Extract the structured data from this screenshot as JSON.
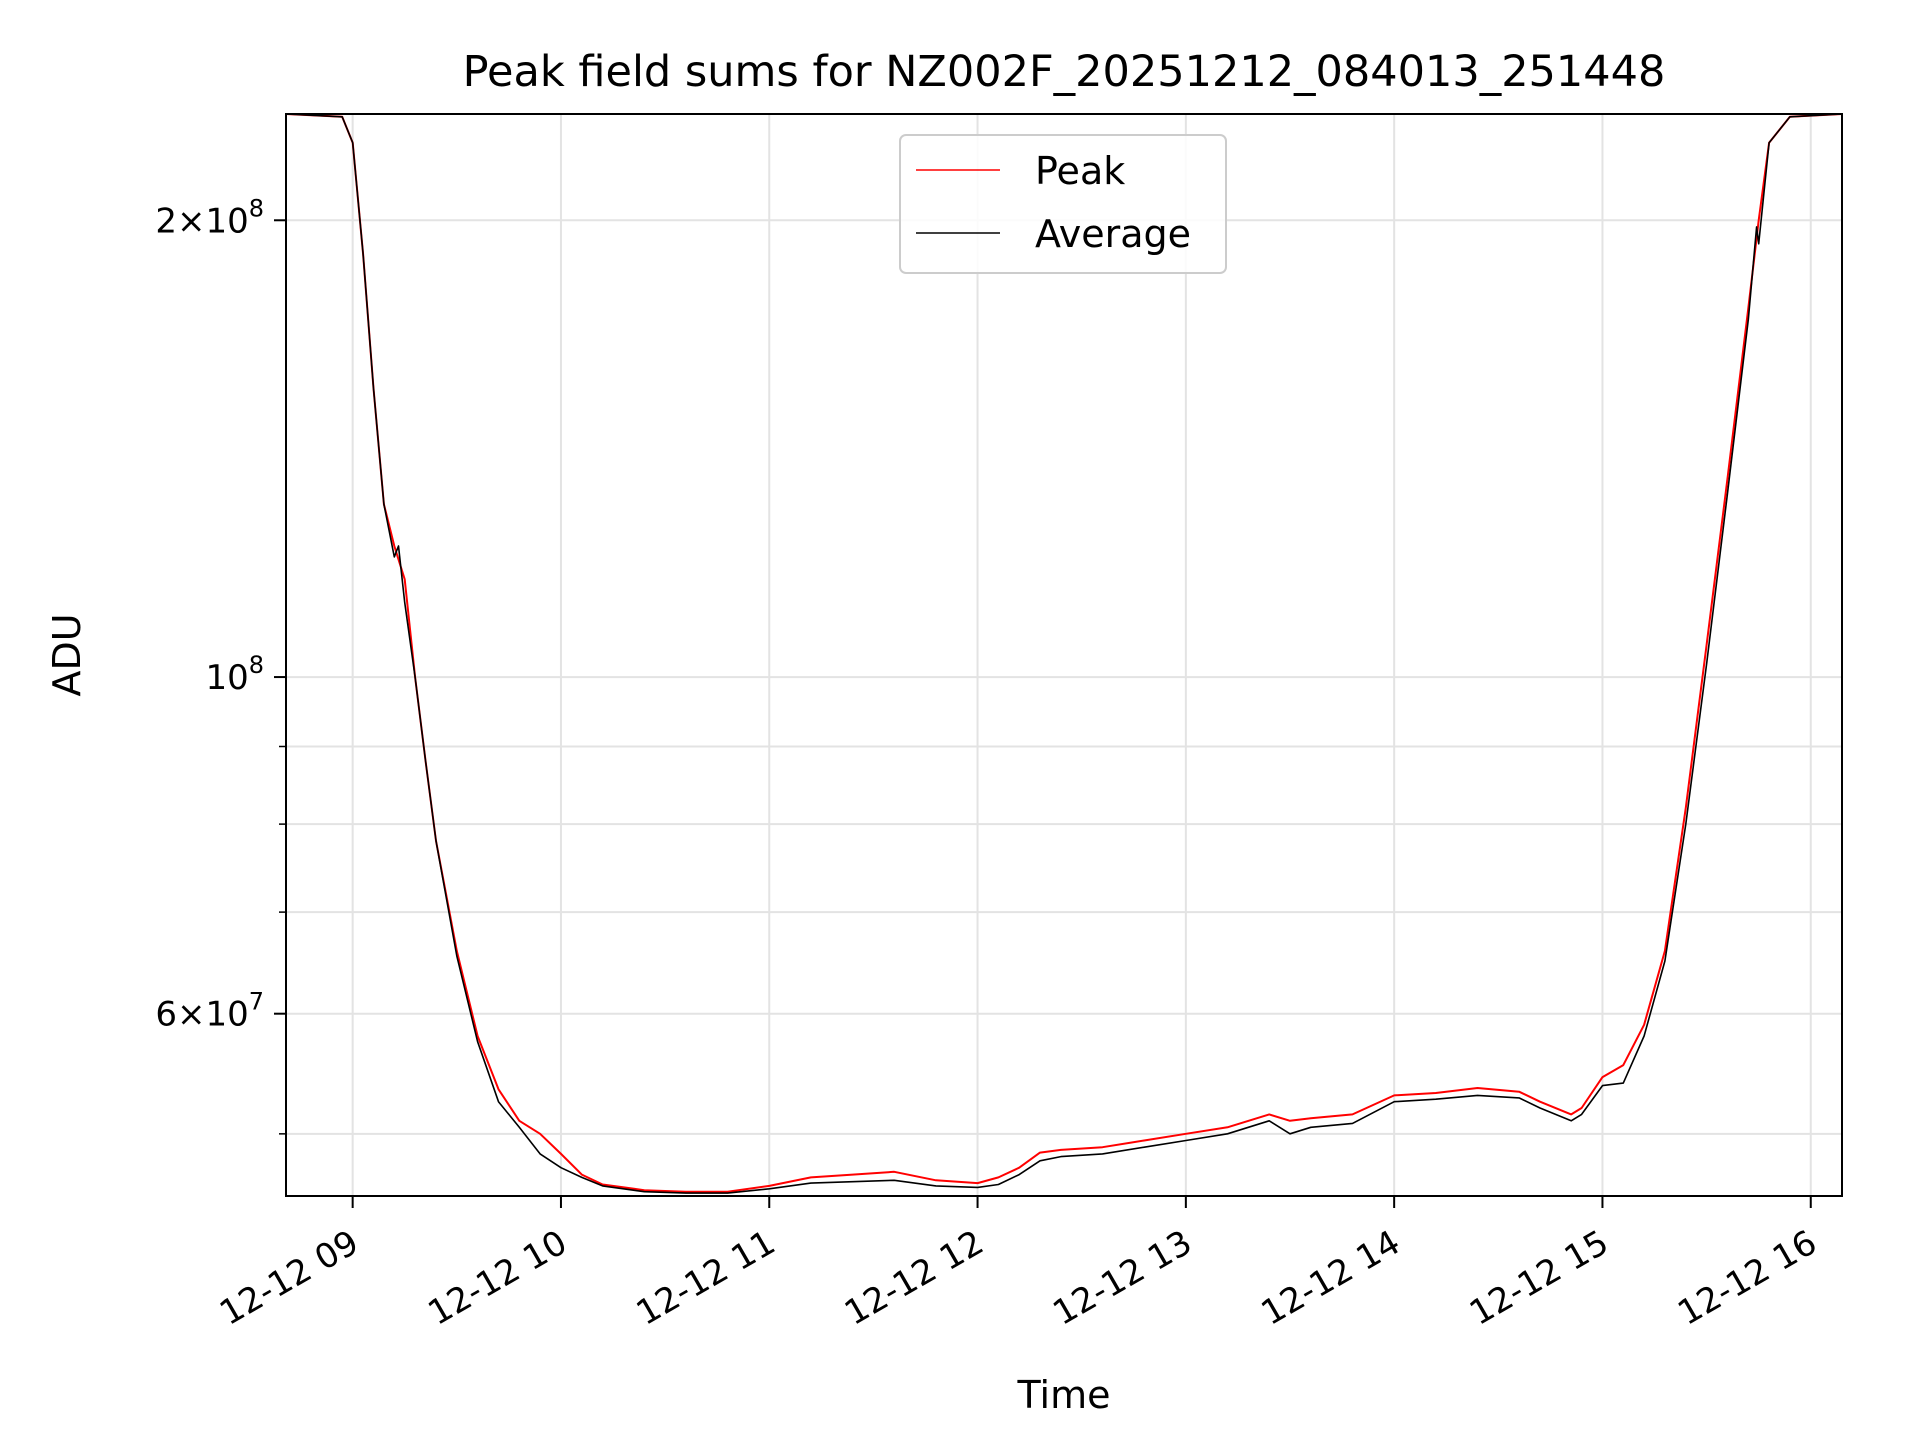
{
  "chart_data": {
    "type": "line",
    "title": "Peak field sums for NZ002F_20251212_084013_251448",
    "xlabel": "Time",
    "ylabel": "ADU",
    "y_scale": "log",
    "xlim": [
      8.68,
      16.15
    ],
    "ylim": [
      45500000,
      235000000
    ],
    "x_ticks": [
      {
        "value": 9,
        "label": "12-12 09"
      },
      {
        "value": 10,
        "label": "12-12 10"
      },
      {
        "value": 11,
        "label": "12-12 11"
      },
      {
        "value": 12,
        "label": "12-12 12"
      },
      {
        "value": 13,
        "label": "12-12 13"
      },
      {
        "value": 14,
        "label": "12-12 14"
      },
      {
        "value": 15,
        "label": "12-12 15"
      },
      {
        "value": 16,
        "label": "12-12 16"
      }
    ],
    "y_major_ticks": [
      {
        "value": 100000000,
        "base": "10",
        "exp": "8",
        "coef": ""
      },
      {
        "value": 200000000,
        "base": "10",
        "exp": "8",
        "coef": "2"
      },
      {
        "value": 60000000,
        "base": "10",
        "exp": "7",
        "coef": "6"
      }
    ],
    "y_minor_ticks": [
      50000000,
      70000000,
      80000000,
      90000000
    ],
    "grid": true,
    "legend_position": "upper center",
    "series": [
      {
        "name": "Peak",
        "color": "#ff0000",
        "x": [
          8.68,
          8.95,
          9.0,
          9.05,
          9.1,
          9.15,
          9.2,
          9.25,
          9.3,
          9.35,
          9.4,
          9.5,
          9.6,
          9.7,
          9.8,
          9.9,
          10.0,
          10.1,
          10.2,
          10.4,
          10.6,
          10.8,
          11.0,
          11.2,
          11.4,
          11.6,
          11.8,
          12.0,
          12.1,
          12.2,
          12.3,
          12.4,
          12.6,
          12.8,
          13.0,
          13.2,
          13.4,
          13.5,
          13.6,
          13.8,
          14.0,
          14.2,
          14.4,
          14.6,
          14.7,
          14.85,
          14.9,
          15.0,
          15.1,
          15.2,
          15.3,
          15.4,
          15.5,
          15.6,
          15.7,
          15.75,
          15.8,
          15.9,
          16.15
        ],
        "y": [
          235000000,
          234000000,
          225000000,
          190000000,
          155000000,
          130000000,
          122000000,
          116000000,
          100000000,
          88000000,
          78000000,
          66000000,
          58000000,
          53500000,
          51000000,
          50000000,
          48500000,
          47000000,
          46300000,
          45900000,
          45800000,
          45800000,
          46200000,
          46800000,
          47000000,
          47200000,
          46600000,
          46400000,
          46800000,
          47500000,
          48600000,
          48800000,
          49000000,
          49500000,
          50000000,
          50500000,
          51500000,
          51000000,
          51200000,
          51500000,
          53000000,
          53200000,
          53600000,
          53300000,
          52500000,
          51500000,
          52000000,
          54500000,
          55500000,
          59000000,
          66000000,
          82000000,
          105000000,
          135000000,
          175000000,
          200000000,
          225000000,
          234000000,
          235000000
        ]
      },
      {
        "name": "Average",
        "color": "#000000",
        "x": [
          8.68,
          8.95,
          9.0,
          9.05,
          9.1,
          9.15,
          9.2,
          9.22,
          9.25,
          9.3,
          9.35,
          9.4,
          9.5,
          9.6,
          9.7,
          9.8,
          9.9,
          10.0,
          10.1,
          10.2,
          10.4,
          10.6,
          10.8,
          11.0,
          11.2,
          11.4,
          11.6,
          11.8,
          12.0,
          12.1,
          12.2,
          12.3,
          12.4,
          12.6,
          12.8,
          13.0,
          13.2,
          13.4,
          13.5,
          13.6,
          13.8,
          14.0,
          14.2,
          14.4,
          14.6,
          14.7,
          14.85,
          14.9,
          15.0,
          15.1,
          15.2,
          15.3,
          15.4,
          15.5,
          15.6,
          15.7,
          15.74,
          15.75,
          15.8,
          15.9,
          16.15
        ],
        "y": [
          235000000,
          234000000,
          225000000,
          190000000,
          155000000,
          130000000,
          120000000,
          122000000,
          112000000,
          100000000,
          88000000,
          78000000,
          65500000,
          57500000,
          52500000,
          50500000,
          48500000,
          47500000,
          46800000,
          46200000,
          45800000,
          45700000,
          45700000,
          46000000,
          46400000,
          46500000,
          46600000,
          46200000,
          46100000,
          46300000,
          47000000,
          48000000,
          48300000,
          48500000,
          49000000,
          49500000,
          50000000,
          51000000,
          50000000,
          50500000,
          50800000,
          52500000,
          52700000,
          53000000,
          52800000,
          52000000,
          51000000,
          51500000,
          53800000,
          54000000,
          58000000,
          65000000,
          80000000,
          102000000,
          132000000,
          172000000,
          198000000,
          193000000,
          225000000,
          234000000,
          235000000
        ]
      }
    ]
  }
}
